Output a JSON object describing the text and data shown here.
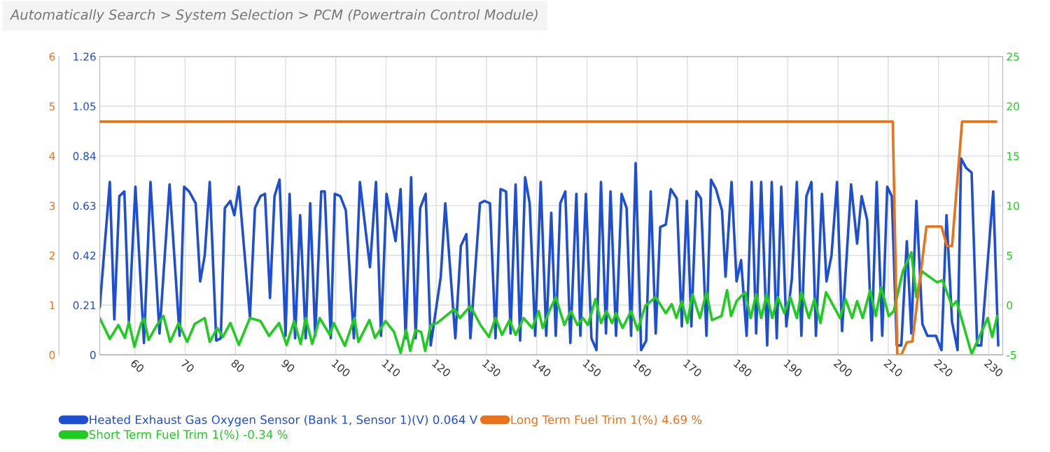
{
  "chart_data": {
    "type": "line",
    "title": "Automatically Search > System Selection > PCM (Powertrain Control Module)",
    "xlim": [
      53,
      232.8
    ],
    "xticks": [
      60,
      70,
      80,
      90,
      100,
      110,
      120,
      130,
      140,
      150,
      160,
      170,
      180,
      190,
      200,
      210,
      220,
      230
    ],
    "ylim": [
      0,
      1.26
    ],
    "yticks": [
      0,
      0.21,
      0.42,
      0.63,
      0.84,
      1.05,
      1.26
    ],
    "y2lim": [
      -5,
      25
    ],
    "y2ticks": [
      -5,
      0,
      5,
      10,
      15,
      20,
      25
    ],
    "y3lim": [
      0,
      6
    ],
    "y3ticks": [
      0,
      1,
      2,
      3,
      4,
      5,
      6
    ],
    "grid": true,
    "legend": "bottom",
    "series": [
      {
        "name": "Heated Exhaust Gas Oxygen Sensor (Bank 1, Sensor 1)(V) 0.064 V",
        "color": "#1f4fd1",
        "axis": "y",
        "x": [
          53.0,
          55.0,
          55.9,
          56.9,
          57.9,
          58.8,
          60.1,
          61.8,
          63.1,
          64.9,
          66.9,
          68.9,
          69.8,
          70.8,
          72.1,
          73.0,
          73.9,
          74.9,
          76.2,
          77.1,
          77.9,
          79.0,
          79.8,
          80.7,
          82.9,
          83.9,
          85.0,
          85.9,
          86.9,
          87.8,
          88.8,
          90.0,
          90.8,
          91.9,
          92.9,
          94.0,
          94.9,
          95.9,
          97.1,
          97.8,
          99.0,
          99.8,
          100.9,
          102.0,
          103.6,
          104.8,
          106.8,
          108.0,
          109.0,
          110.1,
          111.9,
          112.9,
          113.9,
          115.0,
          115.9,
          116.8,
          117.9,
          118.9,
          120.9,
          121.8,
          123.8,
          124.9,
          126.0,
          126.8,
          128.7,
          129.6,
          130.7,
          131.8,
          132.8,
          133.9,
          134.8,
          135.8,
          136.7,
          137.7,
          138.6,
          139.7,
          140.8,
          141.9,
          142.9,
          143.8,
          144.7,
          145.7,
          146.7,
          147.9,
          148.7,
          149.8,
          150.9,
          151.9,
          152.8,
          153.8,
          154.7,
          155.8,
          156.9,
          157.9,
          158.8,
          159.7,
          160.8,
          161.8,
          162.7,
          163.7,
          164.6,
          165.7,
          166.7,
          167.9,
          168.9,
          169.9,
          170.8,
          171.8,
          172.7,
          173.8,
          174.7,
          175.7,
          176.9,
          177.6,
          178.8,
          179.8,
          180.7,
          181.8,
          182.8,
          183.7,
          184.7,
          185.9,
          186.8,
          187.8,
          188.7,
          189.7,
          190.8,
          191.8,
          192.7,
          193.7,
          194.7,
          195.6,
          196.8,
          197.7,
          198.7,
          199.8,
          200.8,
          202.6,
          203.8,
          204.7,
          205.8,
          206.7,
          207.7,
          208.8,
          209.8,
          210.7,
          211.7,
          212.6,
          213.7,
          214.6,
          215.6,
          216.8,
          217.8,
          219.5,
          220.6,
          221.6,
          222.7,
          223.8,
          224.5,
          225.5,
          226.6,
          227.7,
          228.5,
          230.9,
          231.9
        ],
        "values": [
          0.2,
          0.73,
          0.15,
          0.67,
          0.69,
          0.14,
          0.71,
          0.05,
          0.73,
          0.09,
          0.72,
          0.08,
          0.71,
          0.69,
          0.64,
          0.31,
          0.42,
          0.73,
          0.06,
          0.07,
          0.62,
          0.65,
          0.59,
          0.71,
          0.16,
          0.62,
          0.67,
          0.68,
          0.24,
          0.67,
          0.74,
          0.08,
          0.68,
          0.07,
          0.59,
          0.07,
          0.64,
          0.08,
          0.69,
          0.69,
          0.07,
          0.68,
          0.67,
          0.61,
          0.07,
          0.73,
          0.37,
          0.73,
          0.08,
          0.68,
          0.48,
          0.7,
          0.07,
          0.75,
          0.07,
          0.62,
          0.68,
          0.04,
          0.33,
          0.64,
          0.07,
          0.46,
          0.51,
          0.07,
          0.64,
          0.65,
          0.64,
          0.07,
          0.7,
          0.69,
          0.09,
          0.72,
          0.06,
          0.75,
          0.64,
          0.08,
          0.73,
          0.08,
          0.6,
          0.08,
          0.64,
          0.69,
          0.05,
          0.68,
          0.08,
          0.68,
          0.07,
          0.02,
          0.73,
          0.09,
          0.69,
          0.08,
          0.68,
          0.62,
          0.08,
          0.81,
          0.02,
          0.06,
          0.69,
          0.09,
          0.54,
          0.55,
          0.7,
          0.66,
          0.12,
          0.65,
          0.12,
          0.69,
          0.66,
          0.08,
          0.74,
          0.7,
          0.61,
          0.33,
          0.73,
          0.31,
          0.4,
          0.08,
          0.73,
          0.09,
          0.73,
          0.04,
          0.73,
          0.07,
          0.71,
          0.12,
          0.32,
          0.73,
          0.08,
          0.67,
          0.73,
          0.08,
          0.68,
          0.31,
          0.42,
          0.73,
          0.1,
          0.72,
          0.47,
          0.67,
          0.57,
          0.06,
          0.73,
          0.08,
          0.71,
          0.67,
          0.04,
          0.04,
          0.48,
          0.09,
          0.65,
          0.13,
          0.08,
          0.08,
          0.02,
          0.59,
          0.14,
          0.02,
          0.83,
          0.79,
          0.77,
          0.04,
          0.04,
          0.69,
          0.04
        ]
      },
      {
        "name": "Long Term Fuel Trim 1(%) 4.69 %",
        "color": "#e8731a",
        "axis": "y3",
        "x": [
          53,
          210.9,
          211.8,
          212.6,
          213.7,
          214.8,
          217.6,
          220.6,
          221.7,
          222.7,
          224.7,
          231.5
        ],
        "values": [
          4.69,
          4.69,
          0,
          0,
          0.25,
          0.27,
          2.58,
          2.58,
          2.19,
          2.19,
          4.69,
          4.69
        ]
      },
      {
        "name": "Short Term Fuel Trim 1(%) -0.34 %",
        "color": "#1fcc1f",
        "axis": "y2",
        "x": [
          53.0,
          55.0,
          56.7,
          58.0,
          58.8,
          59.9,
          61.2,
          61.8,
          62.7,
          64.4,
          65.7,
          67.0,
          68.7,
          70.4,
          71.9,
          73.9,
          74.9,
          76.4,
          77.5,
          79.0,
          80.7,
          82.9,
          85.0,
          86.7,
          88.7,
          90.2,
          91.7,
          93.0,
          94.0,
          95.3,
          96.8,
          98.8,
          99.6,
          101.8,
          103.7,
          104.5,
          106.7,
          107.8,
          109.9,
          111.6,
          112.9,
          114.0,
          114.8,
          115.9,
          117.0,
          117.8,
          118.9,
          120.2,
          121.9,
          123.6,
          124.7,
          126.8,
          128.8,
          130.5,
          131.8,
          133.1,
          134.6,
          135.8,
          137.4,
          139.1,
          140.4,
          141.2,
          142.5,
          143.8,
          145.5,
          146.8,
          148.1,
          149.2,
          150.2,
          151.7,
          152.8,
          153.9,
          155.0,
          155.8,
          157.1,
          158.8,
          160.1,
          161.6,
          163.7,
          165.7,
          166.9,
          167.8,
          168.9,
          170.0,
          171.0,
          172.5,
          173.8,
          174.9,
          176.8,
          177.9,
          178.7,
          179.8,
          181.5,
          182.6,
          183.7,
          184.7,
          185.8,
          186.9,
          188.0,
          189.3,
          190.5,
          191.8,
          192.7,
          194.2,
          195.3,
          196.5,
          197.6,
          199.1,
          200.4,
          201.5,
          202.8,
          203.8,
          204.9,
          206.4,
          207.5,
          208.6,
          210.1,
          211.1,
          212.9,
          214.6,
          215.6,
          216.7,
          219.7,
          220.8,
          222.7,
          223.6,
          226.6,
          229.8,
          230.7,
          231.7
        ],
        "values": [
          -1.3,
          -3.4,
          -2.0,
          -3.3,
          -1.7,
          -4.2,
          -1.9,
          -1.3,
          -3.5,
          -2.0,
          -1.1,
          -3.7,
          -1.8,
          -3.7,
          -1.9,
          -1.3,
          -3.7,
          -2.3,
          -3.2,
          -1.8,
          -4.0,
          -1.3,
          -1.6,
          -3.1,
          -1.8,
          -4.0,
          -1.6,
          -3.9,
          -1.3,
          -3.9,
          -1.3,
          -3.0,
          -1.8,
          -4.1,
          -1.3,
          -3.7,
          -1.5,
          -3.3,
          -1.6,
          -2.7,
          -4.8,
          -2.5,
          -4.6,
          -2.5,
          -2.7,
          -4.6,
          -2.0,
          -1.8,
          -1.1,
          -0.4,
          -1.3,
          -0.1,
          -2.0,
          -3.2,
          -1.3,
          -3.0,
          -1.5,
          -3.0,
          -1.3,
          -2.3,
          -0.6,
          -2.3,
          -0.6,
          0.8,
          -2.0,
          -0.6,
          -2.0,
          -1.3,
          -2.0,
          0.6,
          -1.8,
          -0.6,
          -1.8,
          -0.8,
          -2.3,
          -0.6,
          -2.5,
          -0.1,
          0.8,
          -0.8,
          0.1,
          -1.3,
          0.4,
          -1.8,
          1.1,
          -1.3,
          1.3,
          -1.5,
          -1.1,
          1.5,
          -1.1,
          0.4,
          1.3,
          -1.3,
          1.1,
          -1.3,
          1.1,
          -1.3,
          0.8,
          -0.8,
          0.8,
          -1.3,
          1.3,
          -1.3,
          0.6,
          -1.8,
          1.3,
          -0.1,
          -1.3,
          0.6,
          -1.3,
          0.4,
          -1.3,
          1.5,
          -1.1,
          1.8,
          -1.1,
          -0.6,
          3.4,
          5.3,
          0.8,
          3.4,
          2.3,
          2.5,
          -0.1,
          0.4,
          -4.9,
          -1.3,
          -3.2,
          -1.1
        ]
      }
    ]
  }
}
